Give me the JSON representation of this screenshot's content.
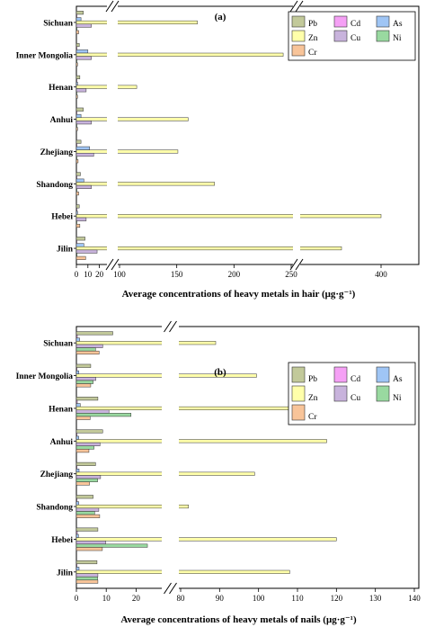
{
  "chart_data": [
    {
      "panel_label": "(a)",
      "type": "bar",
      "orientation": "horizontal",
      "xlabel": "Average concentrations of heavy metals in hair (μg·g⁻¹)",
      "categories": [
        "Sichuan",
        "Inner Mongolia",
        "Henan",
        "Anhui",
        "Zhejiang",
        "Shandong",
        "Hebei",
        "Jilin"
      ],
      "x_axis": {
        "broken": true,
        "segments": [
          [
            0,
            25
          ],
          [
            100,
            250
          ],
          [
            340,
            400
          ]
        ],
        "ticks": [
          {
            "v": 0,
            "label": "0"
          },
          {
            "v": 10,
            "label": "10"
          },
          {
            "v": 20,
            "label": "20"
          },
          {
            "v": 100,
            "label": "100"
          },
          {
            "v": 150,
            "label": "150"
          },
          {
            "v": 200,
            "label": "200"
          },
          {
            "v": 250,
            "label": "250"
          },
          {
            "v": 400,
            "label": "400"
          }
        ]
      },
      "series": [
        {
          "name": "Pb",
          "color": "#c2c99a",
          "values": [
            6,
            2.5,
            3,
            6,
            4,
            3.5,
            2.5,
            7.5
          ]
        },
        {
          "name": "Cd",
          "color": "#f5a0f5",
          "values": [
            0.2,
            0.2,
            0.2,
            0.2,
            0.2,
            0.2,
            0.2,
            0.3
          ]
        },
        {
          "name": "As",
          "color": "#9fc5f5",
          "values": [
            4,
            10,
            1,
            4,
            11.5,
            6.5,
            1,
            6.5
          ]
        },
        {
          "name": "Zn",
          "color": "#ffffaa",
          "values": [
            168,
            243,
            115,
            160,
            151,
            183,
            400,
            370
          ]
        },
        {
          "name": "Cu",
          "color": "#c8b3dc",
          "values": [
            13,
            13,
            8.5,
            13,
            15,
            13,
            8.5,
            18
          ]
        },
        {
          "name": "Ni",
          "color": "#99d9a0",
          "values": [
            0.5,
            0.5,
            0.3,
            0.4,
            0.3,
            0.5,
            0.3,
            0.6
          ]
        },
        {
          "name": "Cr",
          "color": "#f8c499",
          "values": [
            2,
            1,
            1,
            1,
            1.5,
            2,
            3,
            8
          ]
        }
      ]
    },
    {
      "panel_label": "(b)",
      "type": "bar",
      "orientation": "horizontal",
      "xlabel": "Average concentrations of heavy metals of nails (μg·g⁻¹)",
      "categories": [
        "Sichuan",
        "Inner Mongolia",
        "Henan",
        "Anhui",
        "Zhejiang",
        "Shandong",
        "Hebei",
        "Jilin"
      ],
      "x_axis": {
        "broken": true,
        "segments": [
          [
            0,
            28
          ],
          [
            80,
            140
          ]
        ],
        "ticks": [
          {
            "v": 0,
            "label": "0"
          },
          {
            "v": 10,
            "label": "10"
          },
          {
            "v": 20,
            "label": "20"
          },
          {
            "v": 80,
            "label": "80"
          },
          {
            "v": 90,
            "label": "90"
          },
          {
            "v": 100,
            "label": "100"
          },
          {
            "v": 110,
            "label": "110"
          },
          {
            "v": 120,
            "label": "120"
          },
          {
            "v": 130,
            "label": "130"
          },
          {
            "v": 140,
            "label": "140"
          }
        ]
      },
      "series": [
        {
          "name": "Pb",
          "color": "#c2c99a",
          "values": [
            12.2,
            4.8,
            7.2,
            8.8,
            6.4,
            5.6,
            7.2,
            6.9
          ]
        },
        {
          "name": "Cd",
          "color": "#f5a0f5",
          "values": [
            0.3,
            0.2,
            0.3,
            0.2,
            0.2,
            0.2,
            0.3,
            0.2
          ]
        },
        {
          "name": "As",
          "color": "#9fc5f5",
          "values": [
            1.1,
            0.8,
            1.3,
            0.8,
            0.9,
            0.8,
            0.7,
            0.9
          ]
        },
        {
          "name": "Zn",
          "color": "#ffffaa",
          "values": [
            89,
            99.5,
            132,
            117.5,
            99,
            82,
            120,
            108
          ]
        },
        {
          "name": "Cu",
          "color": "#c8b3dc",
          "values": [
            8.8,
            6.5,
            10.9,
            7.9,
            8.1,
            7.5,
            9.8,
            7.2
          ]
        },
        {
          "name": "Ni",
          "color": "#99d9a0",
          "values": [
            6.4,
            5.6,
            18.3,
            5.9,
            7.1,
            6.1,
            23.8,
            7.1
          ]
        },
        {
          "name": "Cr",
          "color": "#f8c499",
          "values": [
            7.6,
            4.8,
            4.6,
            4.2,
            4.4,
            7.8,
            8.7,
            7.2
          ]
        }
      ]
    }
  ]
}
